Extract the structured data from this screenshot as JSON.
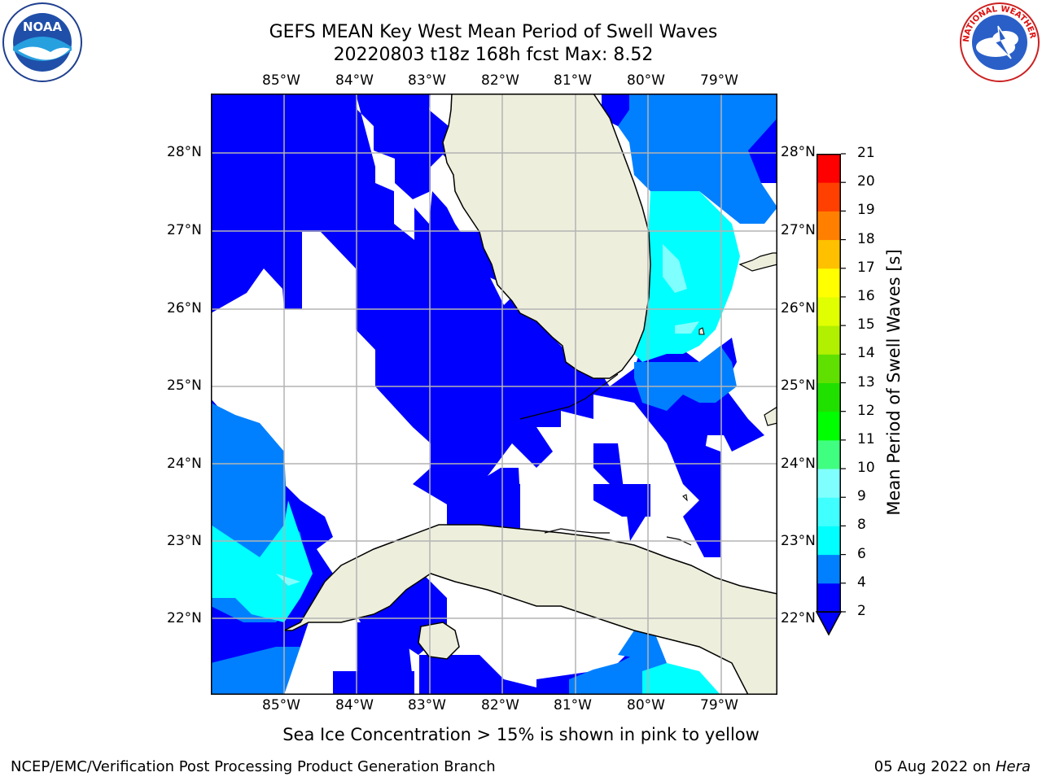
{
  "title_line1": "GEFS MEAN Key West Mean Period of Swell Waves",
  "title_line2": "20220803 t18z 168h fcst   Max: 8.52",
  "lon_labels": [
    "85°W",
    "84°W",
    "83°W",
    "82°W",
    "81°W",
    "80°W",
    "79°W"
  ],
  "lat_labels": [
    "28°N",
    "27°N",
    "26°N",
    "25°N",
    "24°N",
    "23°N",
    "22°N"
  ],
  "colorbar": {
    "label": "Mean Period of Swell Waves [s]",
    "ticks": [
      "2",
      "4",
      "6",
      "8",
      "9",
      "10",
      "11",
      "12",
      "13",
      "14",
      "15",
      "16",
      "17",
      "18",
      "19",
      "20",
      "21"
    ],
    "colors": [
      "#0000ff",
      "#0080ff",
      "#00ffff",
      "#40ffff",
      "#80ffff",
      "#40ff80",
      "#00ff00",
      "#20e000",
      "#60e000",
      "#b0f000",
      "#e0ff00",
      "#ffff00",
      "#ffc000",
      "#ff8000",
      "#ff4000",
      "#ff0000"
    ]
  },
  "map": {
    "lon_range": [
      -86.0,
      -78.25
    ],
    "lat_range": [
      21.0,
      28.75
    ],
    "land_color": "#eeeedd",
    "grid_color": "#b4b4b4"
  },
  "logos": {
    "noaa_text": "NOAA",
    "nws_text": "NATIONAL WEATHER SERVICE"
  },
  "footer": {
    "note": "Sea Ice Concentration > 15% is shown in pink to yellow",
    "org": "NCEP/EMC/Verification Post Processing Product Generation Branch",
    "date": "05 Aug 2022 on ",
    "machine": "Hera"
  }
}
